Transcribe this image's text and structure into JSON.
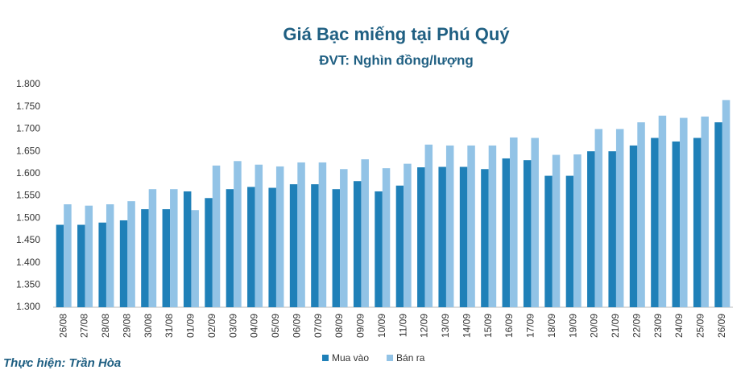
{
  "chart_data": {
    "type": "bar",
    "title": "Giá Bạc miếng tại Phú Quý",
    "subtitle": "ĐVT: Nghìn đồng/lượng",
    "credit": "Thực hiện: Trần Hòa",
    "categories": [
      "26/08",
      "27/08",
      "28/08",
      "29/08",
      "30/08",
      "31/08",
      "01/09",
      "02/09",
      "03/09",
      "04/09",
      "05/09",
      "06/09",
      "07/09",
      "08/09",
      "09/09",
      "10/09",
      "11/09",
      "12/09",
      "13/09",
      "14/09",
      "15/09",
      "16/09",
      "17/09",
      "18/09",
      "19/09",
      "20/09",
      "21/09",
      "22/09",
      "23/09",
      "24/09",
      "25/09",
      "26/09"
    ],
    "series": [
      {
        "name": "Mua vào",
        "color": "#1f80b8",
        "values": [
          1485,
          1485,
          1490,
          1495,
          1520,
          1520,
          1560,
          1545,
          1565,
          1570,
          1568,
          1576,
          1576,
          1565,
          1583,
          1560,
          1573,
          1614,
          1615,
          1615,
          1610,
          1634,
          1630,
          1595,
          1595,
          1650,
          1650,
          1663,
          1680,
          1672,
          1680,
          1715
        ]
      },
      {
        "name": "Bán ra",
        "color": "#92c3e6",
        "values": [
          1531,
          1528,
          1531,
          1538,
          1565,
          1565,
          1518,
          1618,
          1628,
          1620,
          1616,
          1625,
          1625,
          1610,
          1632,
          1612,
          1622,
          1665,
          1663,
          1663,
          1663,
          1681,
          1680,
          1642,
          1643,
          1700,
          1700,
          1715,
          1730,
          1725,
          1728,
          1765
        ]
      }
    ],
    "ylim": [
      1300,
      1800
    ],
    "yticks": [
      {
        "value": 1300,
        "label": "1.300"
      },
      {
        "value": 1350,
        "label": "1.350"
      },
      {
        "value": 1400,
        "label": "1.400"
      },
      {
        "value": 1450,
        "label": "1.450"
      },
      {
        "value": 1500,
        "label": "1.500"
      },
      {
        "value": 1550,
        "label": "1.550"
      },
      {
        "value": 1600,
        "label": "1.600"
      },
      {
        "value": 1650,
        "label": "1.650"
      },
      {
        "value": 1700,
        "label": "1.700"
      },
      {
        "value": 1750,
        "label": "1.750"
      },
      {
        "value": 1800,
        "label": "1.800"
      }
    ],
    "grid": false,
    "legend": "bottom"
  }
}
